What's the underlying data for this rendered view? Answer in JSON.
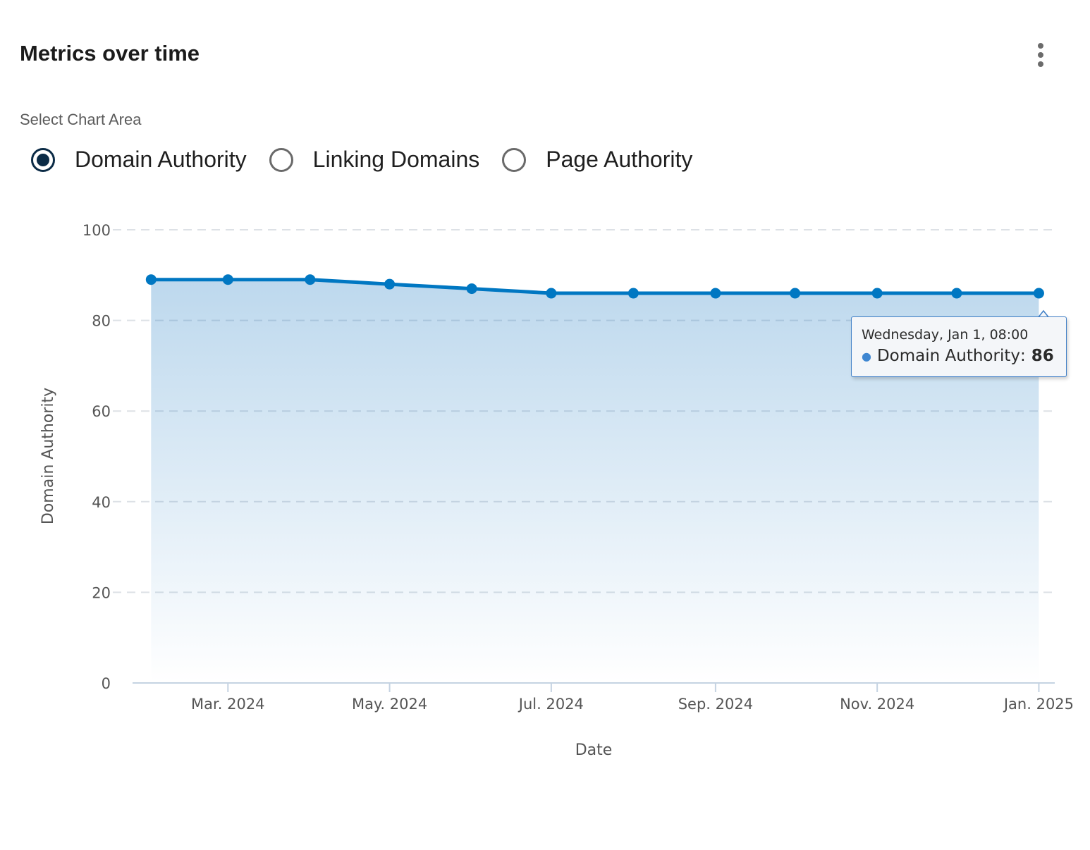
{
  "header": {
    "title": "Metrics over time",
    "menu_icon": "more-vertical-icon"
  },
  "selector": {
    "label": "Select Chart Area",
    "options": [
      {
        "label": "Domain Authority",
        "checked": true
      },
      {
        "label": "Linking Domains",
        "checked": false
      },
      {
        "label": "Page Authority",
        "checked": false
      }
    ]
  },
  "tooltip": {
    "date": "Wednesday, Jan 1, 08:00",
    "series": "Domain Authority",
    "value": "86"
  },
  "chart_data": {
    "type": "area",
    "title": "",
    "xlabel": "Date",
    "ylabel": "Domain Authority",
    "ylim": [
      0,
      100
    ],
    "yticks": [
      0,
      20,
      40,
      60,
      80,
      100
    ],
    "xlim": [
      "2024-01-25",
      "2025-01-07"
    ],
    "xticks": [
      {
        "date": "2024-03-01",
        "label": "Mar. 2024"
      },
      {
        "date": "2024-05-01",
        "label": "May. 2024"
      },
      {
        "date": "2024-07-01",
        "label": "Jul. 2024"
      },
      {
        "date": "2024-09-01",
        "label": "Sep. 2024"
      },
      {
        "date": "2024-11-01",
        "label": "Nov. 2024"
      },
      {
        "date": "2025-01-01",
        "label": "Jan. 2025"
      }
    ],
    "grid": true,
    "series": [
      {
        "name": "Domain Authority",
        "color": "#0077c2",
        "points": [
          {
            "x": "2024-02-01",
            "y": 89
          },
          {
            "x": "2024-03-01",
            "y": 89
          },
          {
            "x": "2024-04-01",
            "y": 89
          },
          {
            "x": "2024-05-01",
            "y": 88
          },
          {
            "x": "2024-06-01",
            "y": 87
          },
          {
            "x": "2024-07-01",
            "y": 86
          },
          {
            "x": "2024-08-01",
            "y": 86
          },
          {
            "x": "2024-09-01",
            "y": 86
          },
          {
            "x": "2024-10-01",
            "y": 86
          },
          {
            "x": "2024-11-01",
            "y": 86
          },
          {
            "x": "2024-12-01",
            "y": 86
          },
          {
            "x": "2025-01-01",
            "y": 86
          }
        ]
      }
    ]
  }
}
